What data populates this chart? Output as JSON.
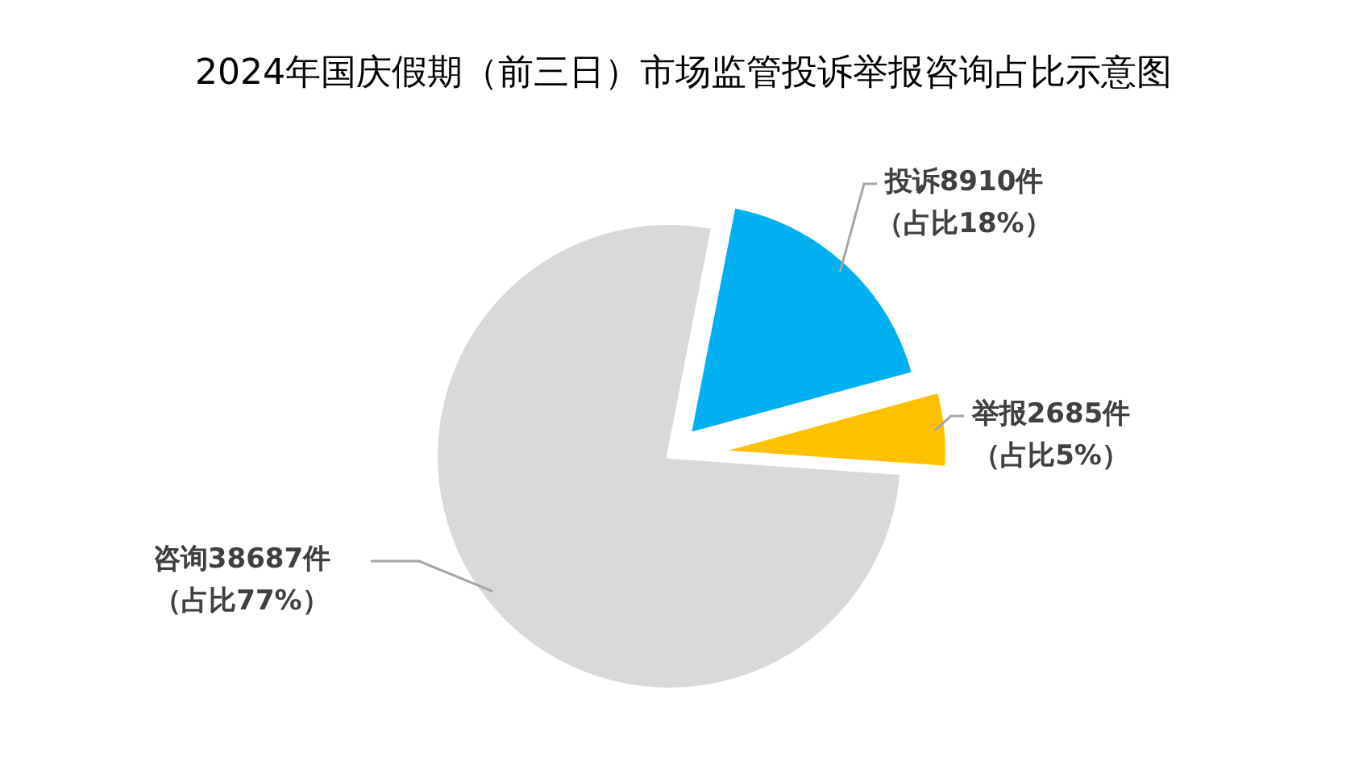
{
  "chart_data": {
    "type": "pie",
    "title": "2024年国庆假期（前三日）市场监管投诉举报咨询占比示意图",
    "categories": [
      "投诉8910件",
      "举报2685件",
      "咨询38687件"
    ],
    "values": [
      8910,
      2685,
      38687
    ],
    "value_labels": [
      "（占比18%）",
      "（占比5%）",
      "（占比77%）"
    ],
    "colors": [
      "#00b0f0",
      "#ffc000",
      "#d9d9d9"
    ]
  }
}
